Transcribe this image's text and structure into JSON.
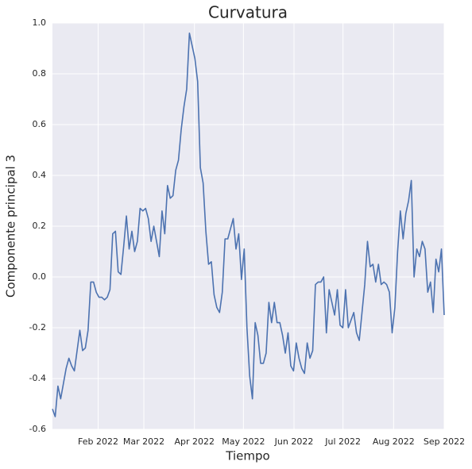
{
  "chart_data": {
    "type": "line",
    "title": "Curvatura",
    "xlabel": "Tiempo",
    "ylabel": "Componente principal 3",
    "xlim": [
      "2022-01-04",
      "2022-09-01"
    ],
    "xticks": [
      {
        "value": "2022-02",
        "label": "Feb 2022"
      },
      {
        "value": "2022-03",
        "label": "Mar 2022"
      },
      {
        "value": "2022-04",
        "label": "Apr 2022"
      },
      {
        "value": "2022-05",
        "label": "May 2022"
      },
      {
        "value": "2022-06",
        "label": "Jun 2022"
      },
      {
        "value": "2022-07",
        "label": "Jul 2022"
      },
      {
        "value": "2022-08",
        "label": "Aug 2022"
      },
      {
        "value": "2022-09",
        "label": "Sep 2022"
      }
    ],
    "ylim": [
      -0.6,
      1.0
    ],
    "yticks": [
      -0.6,
      -0.4,
      -0.2,
      0.0,
      0.2,
      0.4,
      0.6,
      0.8,
      1.0
    ],
    "grid": true,
    "series": [
      {
        "name": "Componente principal 3",
        "color": "#4c72b0",
        "values": [
          -0.52,
          -0.55,
          -0.43,
          -0.48,
          -0.42,
          -0.36,
          -0.32,
          -0.35,
          -0.37,
          -0.29,
          -0.21,
          -0.29,
          -0.28,
          -0.21,
          -0.02,
          -0.02,
          -0.06,
          -0.08,
          -0.08,
          -0.09,
          -0.08,
          -0.05,
          0.17,
          0.18,
          0.02,
          0.01,
          0.12,
          0.24,
          0.11,
          0.18,
          0.1,
          0.14,
          0.27,
          0.26,
          0.27,
          0.23,
          0.14,
          0.2,
          0.14,
          0.08,
          0.26,
          0.17,
          0.36,
          0.31,
          0.32,
          0.42,
          0.46,
          0.58,
          0.67,
          0.74,
          0.96,
          0.91,
          0.86,
          0.77,
          0.43,
          0.37,
          0.18,
          0.05,
          0.06,
          -0.07,
          -0.12,
          -0.14,
          -0.06,
          0.15,
          0.15,
          0.19,
          0.23,
          0.11,
          0.17,
          -0.01,
          0.11,
          -0.2,
          -0.39,
          -0.48,
          -0.18,
          -0.23,
          -0.34,
          -0.34,
          -0.3,
          -0.1,
          -0.18,
          -0.1,
          -0.18,
          -0.18,
          -0.23,
          -0.3,
          -0.22,
          -0.35,
          -0.37,
          -0.26,
          -0.32,
          -0.36,
          -0.38,
          -0.26,
          -0.32,
          -0.29,
          -0.03,
          -0.02,
          -0.02,
          0.0,
          -0.22,
          -0.05,
          -0.1,
          -0.15,
          -0.05,
          -0.19,
          -0.2,
          -0.05,
          -0.2,
          -0.17,
          -0.14,
          -0.22,
          -0.25,
          -0.14,
          -0.03,
          0.14,
          0.04,
          0.05,
          -0.02,
          0.05,
          -0.03,
          -0.02,
          -0.03,
          -0.06,
          -0.22,
          -0.12,
          0.1,
          0.26,
          0.15,
          0.25,
          0.3,
          0.38,
          0.0,
          0.11,
          0.08,
          0.14,
          0.11,
          -0.06,
          -0.02,
          -0.14,
          0.07,
          0.02,
          0.11,
          -0.15
        ]
      }
    ]
  }
}
